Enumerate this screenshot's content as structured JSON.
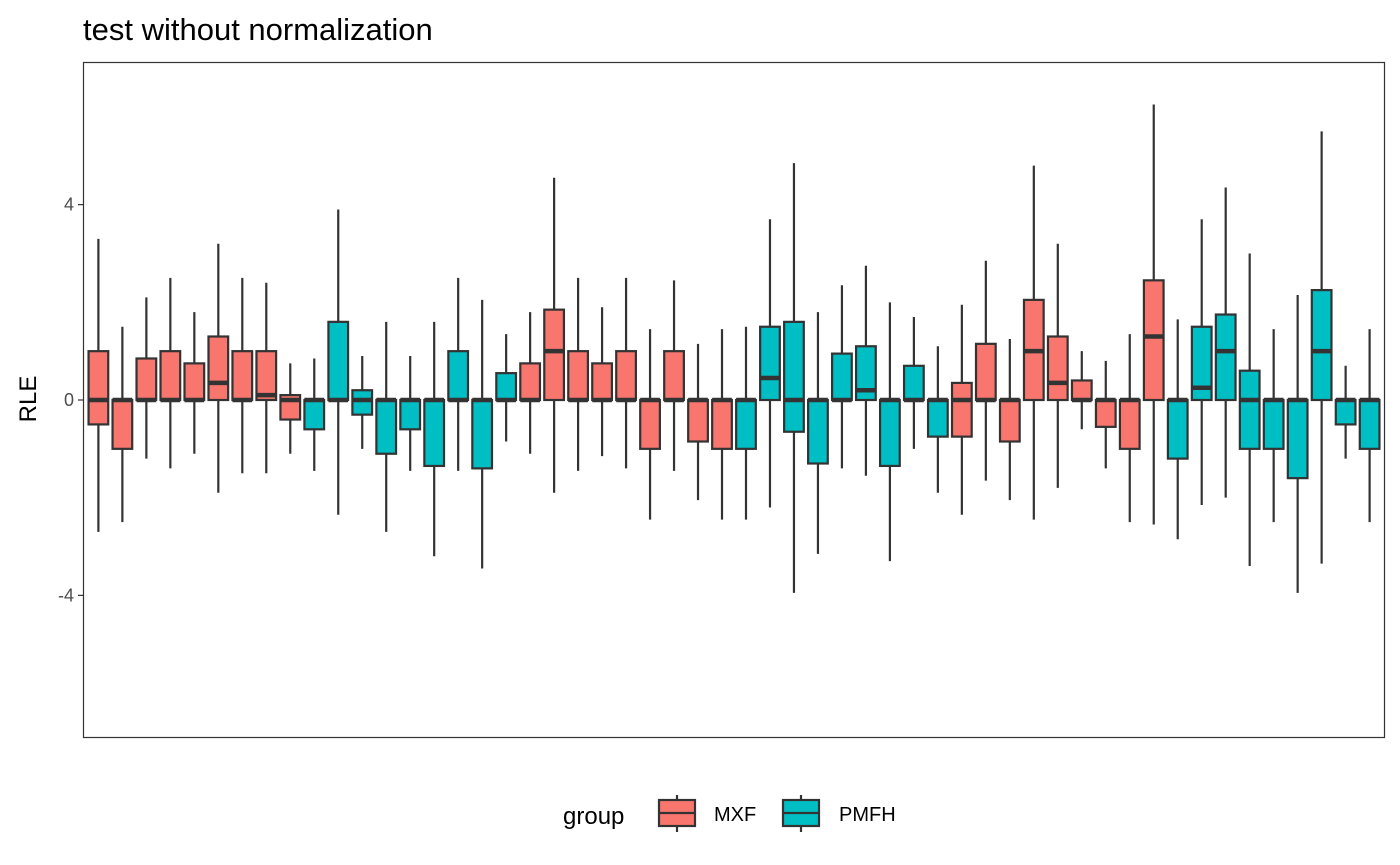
{
  "chart_data": {
    "type": "boxplot",
    "title": "test without normalization",
    "ylabel": "RLE",
    "xlabel": "",
    "ylim": [
      -6.9,
      6.9
    ],
    "yticks": [
      -4,
      0,
      4
    ],
    "grid": false,
    "legend": {
      "title": "group",
      "position": "bottom",
      "entries": [
        {
          "name": "MXF",
          "color": "#F8766D"
        },
        {
          "name": "PMFH",
          "color": "#00BFC4"
        }
      ]
    },
    "colors": {
      "MXF": "#F8766D",
      "PMFH": "#00BFC4",
      "outline": "#333333"
    },
    "boxes": [
      {
        "group": "MXF",
        "min": -2.7,
        "q1": -0.5,
        "median": 0,
        "q3": 1.0,
        "max": 3.3
      },
      {
        "group": "MXF",
        "min": -2.5,
        "q1": -1.0,
        "median": 0,
        "q3": 0,
        "max": 1.5
      },
      {
        "group": "MXF",
        "min": -1.2,
        "q1": 0,
        "median": 0,
        "q3": 0.85,
        "max": 2.1
      },
      {
        "group": "MXF",
        "min": -1.4,
        "q1": 0,
        "median": 0,
        "q3": 1.0,
        "max": 2.5
      },
      {
        "group": "MXF",
        "min": -1.1,
        "q1": 0,
        "median": 0,
        "q3": 0.75,
        "max": 1.8
      },
      {
        "group": "MXF",
        "min": -1.9,
        "q1": 0,
        "median": 0.35,
        "q3": 1.3,
        "max": 3.2
      },
      {
        "group": "MXF",
        "min": -1.5,
        "q1": 0,
        "median": 0,
        "q3": 1.0,
        "max": 2.5
      },
      {
        "group": "MXF",
        "min": -1.5,
        "q1": 0,
        "median": 0.1,
        "q3": 1.0,
        "max": 2.4
      },
      {
        "group": "MXF",
        "min": -1.1,
        "q1": -0.4,
        "median": 0,
        "q3": 0.1,
        "max": 0.75
      },
      {
        "group": "PMFH",
        "min": -1.45,
        "q1": -0.6,
        "median": 0,
        "q3": 0,
        "max": 0.85
      },
      {
        "group": "PMFH",
        "min": -2.35,
        "q1": 0,
        "median": 0,
        "q3": 1.6,
        "max": 3.9
      },
      {
        "group": "PMFH",
        "min": -1.0,
        "q1": -0.3,
        "median": 0,
        "q3": 0.2,
        "max": 0.9
      },
      {
        "group": "PMFH",
        "min": -2.7,
        "q1": -1.1,
        "median": 0,
        "q3": 0,
        "max": 1.6
      },
      {
        "group": "PMFH",
        "min": -1.45,
        "q1": -0.6,
        "median": 0,
        "q3": 0,
        "max": 0.9
      },
      {
        "group": "PMFH",
        "min": -3.2,
        "q1": -1.35,
        "median": 0,
        "q3": 0,
        "max": 1.6
      },
      {
        "group": "PMFH",
        "min": -1.45,
        "q1": 0,
        "median": 0,
        "q3": 1.0,
        "max": 2.5
      },
      {
        "group": "PMFH",
        "min": -3.45,
        "q1": -1.4,
        "median": 0,
        "q3": 0,
        "max": 2.05
      },
      {
        "group": "PMFH",
        "min": -0.85,
        "q1": 0,
        "median": 0,
        "q3": 0.55,
        "max": 1.35
      },
      {
        "group": "MXF",
        "min": -1.1,
        "q1": 0,
        "median": 0,
        "q3": 0.75,
        "max": 1.8
      },
      {
        "group": "MXF",
        "min": -1.9,
        "q1": 0,
        "median": 1.0,
        "q3": 1.85,
        "max": 4.55
      },
      {
        "group": "MXF",
        "min": -1.45,
        "q1": 0,
        "median": 0,
        "q3": 1.0,
        "max": 2.5
      },
      {
        "group": "MXF",
        "min": -1.15,
        "q1": 0,
        "median": 0,
        "q3": 0.75,
        "max": 1.9
      },
      {
        "group": "MXF",
        "min": -1.4,
        "q1": 0,
        "median": 0,
        "q3": 1.0,
        "max": 2.5
      },
      {
        "group": "MXF",
        "min": -2.45,
        "q1": -1.0,
        "median": 0,
        "q3": 0,
        "max": 1.45
      },
      {
        "group": "MXF",
        "min": -1.45,
        "q1": 0,
        "median": 0,
        "q3": 1.0,
        "max": 2.45
      },
      {
        "group": "MXF",
        "min": -2.05,
        "q1": -0.85,
        "median": 0,
        "q3": 0,
        "max": 1.15
      },
      {
        "group": "MXF",
        "min": -2.45,
        "q1": -1.0,
        "median": 0,
        "q3": 0,
        "max": 1.45
      },
      {
        "group": "PMFH",
        "min": -2.45,
        "q1": -1.0,
        "median": 0,
        "q3": 0,
        "max": 1.5
      },
      {
        "group": "PMFH",
        "min": -2.2,
        "q1": 0,
        "median": 0.45,
        "q3": 1.5,
        "max": 3.7
      },
      {
        "group": "PMFH",
        "min": -3.95,
        "q1": -0.65,
        "median": 0,
        "q3": 1.6,
        "max": 4.85
      },
      {
        "group": "PMFH",
        "min": -3.15,
        "q1": -1.3,
        "median": 0,
        "q3": 0,
        "max": 1.8
      },
      {
        "group": "PMFH",
        "min": -1.4,
        "q1": 0,
        "median": 0,
        "q3": 0.95,
        "max": 2.35
      },
      {
        "group": "PMFH",
        "min": -1.55,
        "q1": 0,
        "median": 0.2,
        "q3": 1.1,
        "max": 2.75
      },
      {
        "group": "PMFH",
        "min": -3.3,
        "q1": -1.35,
        "median": 0,
        "q3": 0,
        "max": 2.0
      },
      {
        "group": "PMFH",
        "min": -1.0,
        "q1": 0,
        "median": 0,
        "q3": 0.7,
        "max": 1.7
      },
      {
        "group": "PMFH",
        "min": -1.9,
        "q1": -0.75,
        "median": 0,
        "q3": 0,
        "max": 1.1
      },
      {
        "group": "MXF",
        "min": -2.35,
        "q1": -0.75,
        "median": 0,
        "q3": 0.35,
        "max": 1.95
      },
      {
        "group": "MXF",
        "min": -1.65,
        "q1": 0,
        "median": 0,
        "q3": 1.15,
        "max": 2.85
      },
      {
        "group": "MXF",
        "min": -2.05,
        "q1": -0.85,
        "median": 0,
        "q3": 0,
        "max": 1.25
      },
      {
        "group": "MXF",
        "min": -2.45,
        "q1": 0,
        "median": 1.0,
        "q3": 2.05,
        "max": 4.8
      },
      {
        "group": "MXF",
        "min": -1.8,
        "q1": 0,
        "median": 0.35,
        "q3": 1.3,
        "max": 3.2
      },
      {
        "group": "MXF",
        "min": -0.6,
        "q1": 0,
        "median": 0,
        "q3": 0.4,
        "max": 1.0
      },
      {
        "group": "MXF",
        "min": -1.4,
        "q1": -0.55,
        "median": 0,
        "q3": 0,
        "max": 0.8
      },
      {
        "group": "MXF",
        "min": -2.5,
        "q1": -1.0,
        "median": 0,
        "q3": 0,
        "max": 1.35
      },
      {
        "group": "MXF",
        "min": -2.55,
        "q1": 0,
        "median": 1.3,
        "q3": 2.45,
        "max": 6.05
      },
      {
        "group": "PMFH",
        "min": -2.85,
        "q1": -1.2,
        "median": 0,
        "q3": 0,
        "max": 1.65
      },
      {
        "group": "PMFH",
        "min": -2.15,
        "q1": 0,
        "median": 0.25,
        "q3": 1.5,
        "max": 3.7
      },
      {
        "group": "PMFH",
        "min": -2.0,
        "q1": 0,
        "median": 1.0,
        "q3": 1.75,
        "max": 4.35
      },
      {
        "group": "PMFH",
        "min": -3.4,
        "q1": -1.0,
        "median": 0,
        "q3": 0.6,
        "max": 3.0
      },
      {
        "group": "PMFH",
        "min": -2.5,
        "q1": -1.0,
        "median": 0,
        "q3": 0,
        "max": 1.45
      },
      {
        "group": "PMFH",
        "min": -3.95,
        "q1": -1.6,
        "median": 0,
        "q3": 0,
        "max": 2.15
      },
      {
        "group": "PMFH",
        "min": -3.35,
        "q1": 0,
        "median": 1.0,
        "q3": 2.25,
        "max": 5.5
      },
      {
        "group": "PMFH",
        "min": -1.2,
        "q1": -0.5,
        "median": 0,
        "q3": 0,
        "max": 0.7
      },
      {
        "group": "PMFH",
        "min": -2.5,
        "q1": -1.0,
        "median": 0,
        "q3": 0,
        "max": 1.45
      }
    ]
  }
}
